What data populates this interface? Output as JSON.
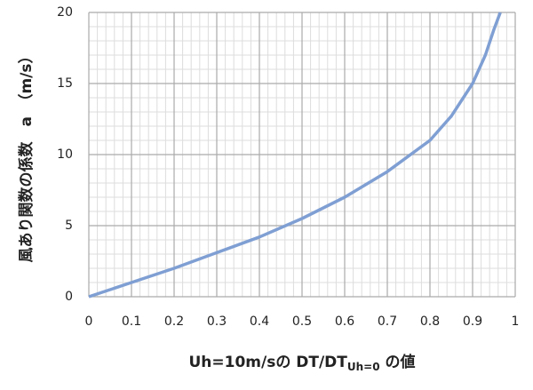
{
  "chart_data": {
    "type": "line",
    "x_label": {
      "main": "Uh=10m/sの DT/DT",
      "sub": "Uh=0",
      "tail": " の値"
    },
    "y_label": "風あり関数の係数　a　（m/s）",
    "x": [
      0,
      0.1,
      0.2,
      0.3,
      0.4,
      0.5,
      0.6,
      0.7,
      0.8,
      0.85,
      0.9,
      0.93,
      0.95,
      0.965
    ],
    "values": [
      0,
      1,
      2,
      3.1,
      4.2,
      5.5,
      7,
      8.8,
      11,
      12.7,
      15,
      17,
      18.8,
      20
    ],
    "color": "#7f9fd3",
    "xlim": [
      0,
      1
    ],
    "xticks": [
      0,
      0.1,
      0.2,
      0.3,
      0.4,
      0.5,
      0.6,
      0.7,
      0.8,
      0.9,
      1
    ],
    "ylim": [
      0,
      20
    ],
    "yticks": [
      0,
      5,
      10,
      15,
      20
    ],
    "grid": true,
    "minor_grid": true
  }
}
